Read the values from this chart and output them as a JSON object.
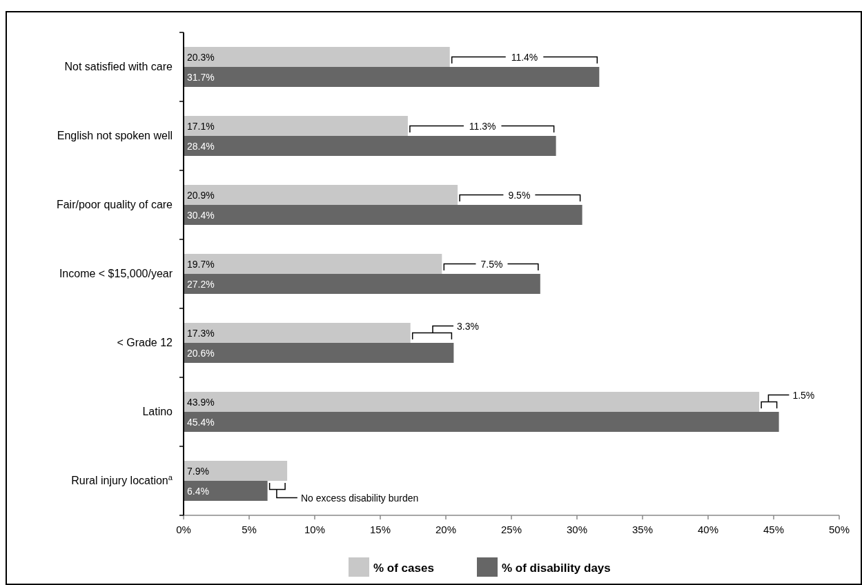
{
  "chart_data": {
    "type": "bar",
    "orientation": "horizontal",
    "categories": [
      "Not satisfied with care",
      "English not spoken well",
      "Fair/poor quality of care",
      "Income < $15,000/year",
      "< Grade 12",
      "Latino",
      "Rural injury location$^{a}$"
    ],
    "series": [
      {
        "name": "% of cases",
        "color": "#c8c8c8",
        "values": [
          20.3,
          17.1,
          20.9,
          19.7,
          17.3,
          43.9,
          7.9
        ],
        "value_labels": [
          "20.3%",
          "17.1%",
          "20.9%",
          "19.7%",
          "17.3%",
          "43.9%",
          "7.9%"
        ]
      },
      {
        "name": "% of disability days",
        "color": "#666666",
        "values": [
          31.7,
          28.4,
          30.4,
          27.2,
          20.6,
          45.4,
          6.4
        ],
        "value_labels": [
          "31.7%",
          "28.4%",
          "30.4%",
          "27.2%",
          "20.6%",
          "45.4%",
          "6.4%"
        ]
      }
    ],
    "xlim": [
      0,
      50
    ],
    "xticks": [
      {
        "value": 0,
        "label": "0%"
      },
      {
        "value": 5,
        "label": "5%"
      },
      {
        "value": 10,
        "label": "10%"
      },
      {
        "value": 15,
        "label": "15%"
      },
      {
        "value": 20,
        "label": "20%"
      },
      {
        "value": 25,
        "label": "25%"
      },
      {
        "value": 30,
        "label": "30%"
      },
      {
        "value": 35,
        "label": "35%"
      },
      {
        "value": 40,
        "label": "40%"
      },
      {
        "value": 45,
        "label": "45%"
      },
      {
        "value": 50,
        "label": "50%"
      }
    ],
    "annotations": [
      {
        "text": "11.4%",
        "x": 26,
        "y": "Not satisfied with care"
      },
      {
        "text": "11.3%",
        "x": 22.8,
        "y": "English not spoken well"
      },
      {
        "text": "9.5%",
        "x": 25.6,
        "y": "Fair/poor quality of care"
      },
      {
        "text": "7.5%",
        "x": 23.5,
        "y": "Income < $15,000/year"
      },
      {
        "text": "3.3%",
        "x": 19,
        "y": "< Grade 12"
      },
      {
        "text": "1.5%",
        "x": 44.6,
        "y": "Latino"
      },
      {
        "text": "No excess disability burden",
        "x": 7.1,
        "y": "Rural injury location$^{a}$"
      }
    ],
    "legend": "bottom",
    "grid": false
  }
}
